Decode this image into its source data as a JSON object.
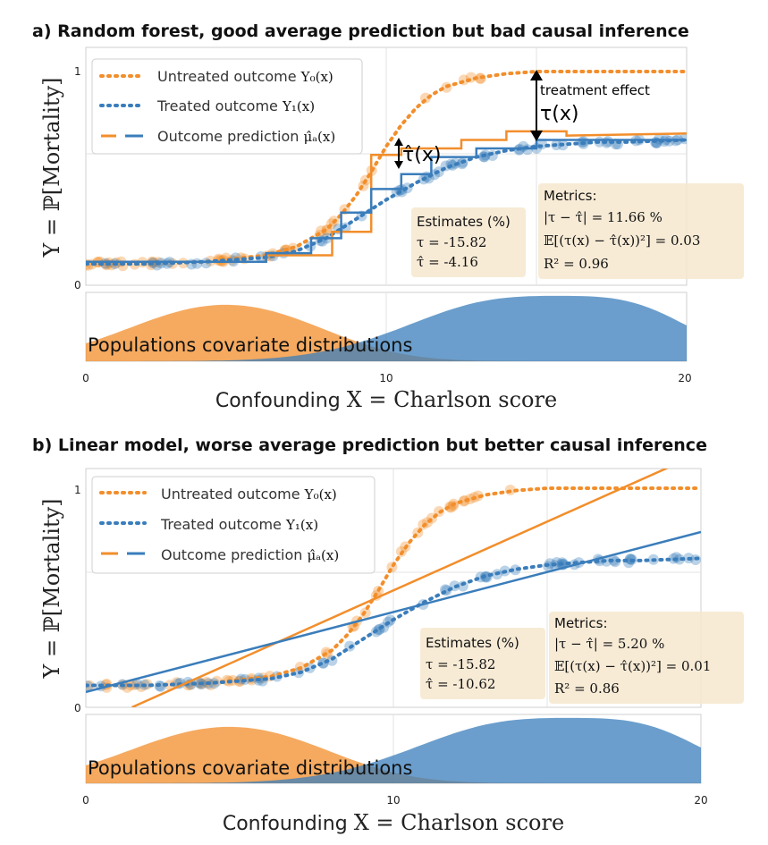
{
  "chart_data": [
    {
      "type": "line",
      "title": "a) Random forest, good average prediction but bad causal inference",
      "ylabel": "Y = ℙ[Mortality]",
      "xlabel_prefix": "Confounding ",
      "xlabel_var": "X = Charlson score",
      "xlim": [
        0,
        20
      ],
      "ylim": [
        0,
        1
      ],
      "x_ticks": [
        "0",
        "10",
        "20"
      ],
      "y_ticks": [
        "0",
        "1"
      ],
      "grid": true,
      "legend_position": "top-left",
      "legend": [
        {
          "label": "Untreated outcome ",
          "math": "Y₀(x)",
          "color": "#f28e2b",
          "style": "dotted"
        },
        {
          "label": "Treated outcome ",
          "math": "Y₁(x)",
          "color": "#3a7dbb",
          "style": "dotted"
        },
        {
          "label": "Outcome prediction ",
          "math": "μ̂ₐ(x)",
          "color_a": "#f28e2b",
          "color_b": "#3a7dbb",
          "style": "dashed"
        }
      ],
      "colors": {
        "untreated": "#f28e2b",
        "treated": "#3a7dbb"
      },
      "series": [
        {
          "id": "untreated_true",
          "x": [
            0,
            2,
            4,
            6,
            7,
            8,
            8.5,
            9,
            9.5,
            10,
            10.5,
            11,
            11.5,
            12,
            13,
            14,
            15,
            16,
            18,
            20
          ],
          "values": [
            0.1,
            0.1,
            0.11,
            0.14,
            0.18,
            0.26,
            0.33,
            0.42,
            0.53,
            0.65,
            0.75,
            0.83,
            0.89,
            0.93,
            0.97,
            0.99,
            1.0,
            1.0,
            1.0,
            1.0
          ]
        },
        {
          "id": "treated_true",
          "x": [
            0,
            2,
            4,
            6,
            7,
            8,
            9,
            10,
            11,
            12,
            13,
            14,
            15,
            16,
            17,
            18,
            20
          ],
          "values": [
            0.1,
            0.1,
            0.11,
            0.13,
            0.16,
            0.22,
            0.31,
            0.4,
            0.48,
            0.55,
            0.6,
            0.63,
            0.65,
            0.66,
            0.67,
            0.67,
            0.68
          ]
        },
        {
          "id": "rf_untreated",
          "x": [
            0,
            6,
            6,
            8.2,
            8.2,
            9.5,
            9.5,
            10.5,
            10.5,
            12.5,
            12.5,
            14,
            14,
            16,
            16,
            20
          ],
          "values": [
            0.11,
            0.11,
            0.14,
            0.14,
            0.25,
            0.25,
            0.61,
            0.61,
            0.64,
            0.64,
            0.68,
            0.68,
            0.72,
            0.72,
            0.7,
            0.71
          ]
        },
        {
          "id": "rf_treated",
          "x": [
            0,
            6,
            6,
            7.5,
            7.5,
            8.5,
            8.5,
            9.5,
            9.5,
            10.5,
            10.5,
            11.5,
            11.5,
            13,
            13,
            15,
            15,
            20
          ],
          "values": [
            0.11,
            0.11,
            0.15,
            0.15,
            0.22,
            0.22,
            0.34,
            0.34,
            0.45,
            0.45,
            0.52,
            0.52,
            0.6,
            0.6,
            0.64,
            0.64,
            0.68,
            0.68
          ]
        }
      ],
      "treatment_effect_label": "treatment effect",
      "tau_label": "τ(x)",
      "tau_hat_label": "τ̂(x)",
      "estimates": {
        "title": "Estimates (%)",
        "tau": "τ = -15.82",
        "tau_hat": "τ̂ = -4.16"
      },
      "metrics": {
        "title": "Metrics:",
        "m1": "|τ − τ̂| = 11.66 %",
        "m2": "𝔼[(τ(x) − τ̂(x))²] = 0.03",
        "m3": "R² = 0.96"
      },
      "distribution_label": "Populations covariate distributions"
    },
    {
      "type": "line",
      "title": "b) Linear model, worse average prediction but better causal inference",
      "ylabel": "Y = ℙ[Mortality]",
      "xlabel_prefix": "Confounding ",
      "xlabel_var": "X = Charlson score",
      "xlim": [
        0,
        20
      ],
      "ylim": [
        0,
        1
      ],
      "x_ticks": [
        "0",
        "10",
        "20"
      ],
      "y_ticks": [
        "0",
        "1"
      ],
      "grid": true,
      "legend_position": "top-left",
      "legend": [
        {
          "label": "Untreated outcome ",
          "math": "Y₀(x)",
          "color": "#f28e2b",
          "style": "dotted"
        },
        {
          "label": "Treated outcome ",
          "math": "Y₁(x)",
          "color": "#3a7dbb",
          "style": "dotted"
        },
        {
          "label": "Outcome prediction ",
          "math": "μ̂ₐ(x)",
          "color_a": "#f28e2b",
          "color_b": "#3a7dbb",
          "style": "dashed"
        }
      ],
      "colors": {
        "untreated": "#f28e2b",
        "treated": "#3a7dbb"
      },
      "series": [
        {
          "id": "untreated_true",
          "x": [
            0,
            2,
            4,
            6,
            7,
            8,
            8.5,
            9,
            9.5,
            10,
            10.5,
            11,
            11.5,
            12,
            13,
            14,
            15,
            16,
            18,
            20
          ],
          "values": [
            0.1,
            0.1,
            0.11,
            0.14,
            0.18,
            0.26,
            0.33,
            0.42,
            0.53,
            0.65,
            0.75,
            0.83,
            0.89,
            0.93,
            0.97,
            0.99,
            1.0,
            1.0,
            1.0,
            1.0
          ]
        },
        {
          "id": "treated_true",
          "x": [
            0,
            2,
            4,
            6,
            7,
            8,
            9,
            10,
            11,
            12,
            13,
            14,
            15,
            16,
            17,
            18,
            20
          ],
          "values": [
            0.1,
            0.1,
            0.11,
            0.13,
            0.16,
            0.22,
            0.31,
            0.4,
            0.48,
            0.55,
            0.6,
            0.63,
            0.65,
            0.66,
            0.67,
            0.67,
            0.68
          ]
        },
        {
          "id": "lin_untreated",
          "x": [
            1.5,
            19.5
          ],
          "values": [
            0.0,
            1.13
          ]
        },
        {
          "id": "lin_treated",
          "x": [
            0,
            20
          ],
          "values": [
            0.07,
            0.8
          ]
        }
      ],
      "estimates": {
        "title": "Estimates (%)",
        "tau": "τ = -15.82",
        "tau_hat": "τ̂ = -10.62"
      },
      "metrics": {
        "title": "Metrics:",
        "m1": "|τ − τ̂| = 5.20 %",
        "m2": "𝔼[(τ(x) − τ̂(x))²] = 0.01",
        "m3": "R² = 0.86"
      },
      "distribution_label": "Populations covariate distributions"
    }
  ]
}
